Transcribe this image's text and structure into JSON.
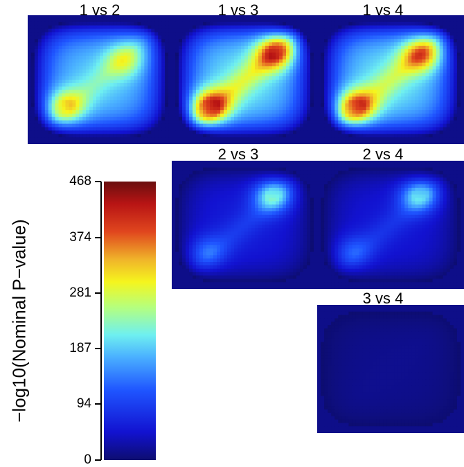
{
  "chart_data": {
    "type": "heatmap",
    "panels": [
      {
        "title": "1 vs 2",
        "peak": 355,
        "background": 200
      },
      {
        "title": "1 vs 3",
        "peak": 460,
        "background": 215
      },
      {
        "title": "1 vs 4",
        "peak": 440,
        "background": 215
      },
      {
        "title": "2 vs 3",
        "peak": 240,
        "background": 60
      },
      {
        "title": "2 vs 4",
        "peak": 220,
        "background": 55
      },
      {
        "title": "3 vs 4",
        "peak": 15,
        "background": 15
      }
    ],
    "colorbar": {
      "label": "−log10(Nominal P−value)",
      "min": 0,
      "max": 468,
      "ticks": [
        "0",
        "94",
        "187",
        "281",
        "374",
        "468"
      ]
    }
  }
}
